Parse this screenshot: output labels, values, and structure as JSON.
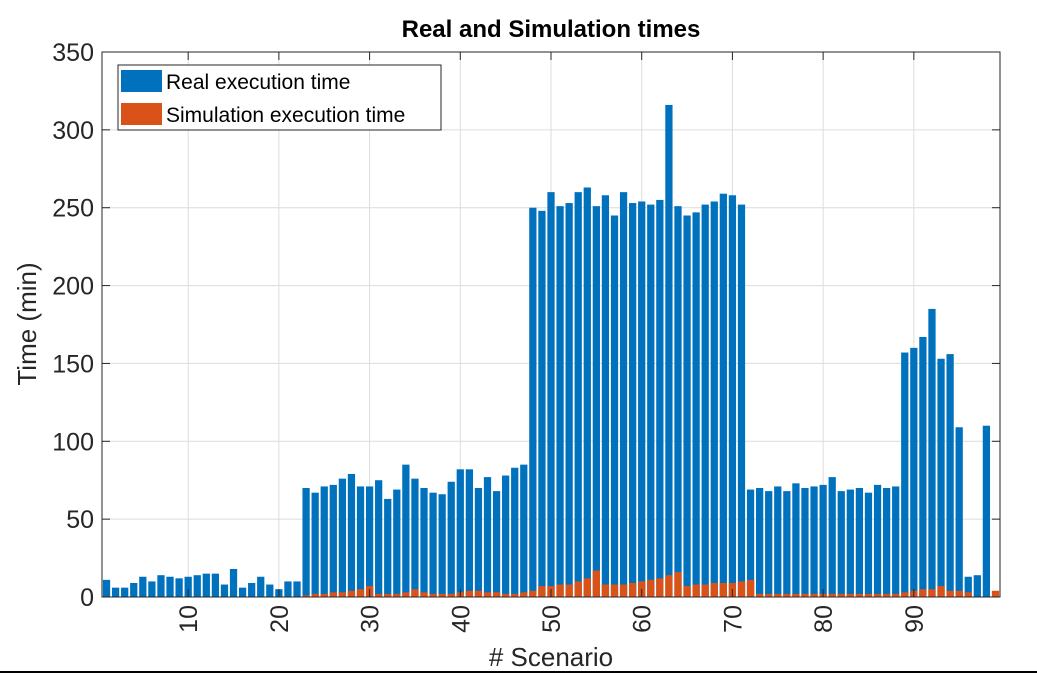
{
  "chart_data": {
    "type": "bar",
    "title": "Real and Simulation times",
    "xlabel": "# Scenario",
    "ylabel": "Time (min)",
    "xlim": [
      0.5,
      99.5
    ],
    "ylim": [
      0,
      350
    ],
    "xticks": [
      10,
      20,
      30,
      40,
      50,
      60,
      70,
      80,
      90
    ],
    "yticks": [
      0,
      50,
      100,
      150,
      200,
      250,
      300,
      350
    ],
    "grid": true,
    "legend_position": "top-left",
    "x": [
      1,
      2,
      3,
      4,
      5,
      6,
      7,
      8,
      9,
      10,
      11,
      12,
      13,
      14,
      15,
      16,
      17,
      18,
      19,
      20,
      21,
      22,
      23,
      24,
      25,
      26,
      27,
      28,
      29,
      30,
      31,
      32,
      33,
      34,
      35,
      36,
      37,
      38,
      39,
      40,
      41,
      42,
      43,
      44,
      45,
      46,
      47,
      48,
      49,
      50,
      51,
      52,
      53,
      54,
      55,
      56,
      57,
      58,
      59,
      60,
      61,
      62,
      63,
      64,
      65,
      66,
      67,
      68,
      69,
      70,
      71,
      72,
      73,
      74,
      75,
      76,
      77,
      78,
      79,
      80,
      81,
      82,
      83,
      84,
      85,
      86,
      87,
      88,
      89,
      90,
      91,
      92,
      93,
      94,
      95,
      96,
      97,
      98,
      99
    ],
    "series": [
      {
        "name": "Real execution time",
        "color": "#0072BD",
        "values": [
          11,
          6,
          6,
          9,
          13,
          10,
          14,
          13,
          12,
          13,
          14,
          15,
          15,
          8,
          18,
          6,
          9,
          13,
          8,
          5,
          10,
          10,
          70,
          67,
          71,
          72,
          76,
          79,
          71,
          71,
          75,
          63,
          69,
          85,
          76,
          70,
          67,
          66,
          74,
          82,
          82,
          70,
          77,
          68,
          78,
          83,
          85,
          250,
          248,
          260,
          251,
          253,
          260,
          263,
          251,
          258,
          245,
          260,
          253,
          254,
          252,
          255,
          316,
          251,
          245,
          247,
          252,
          254,
          259,
          258,
          252,
          69,
          70,
          68,
          71,
          68,
          73,
          70,
          71,
          72,
          77,
          68,
          69,
          70,
          67,
          72,
          70,
          71,
          157,
          160,
          167,
          185,
          153,
          156,
          109,
          13,
          14,
          110,
          0
        ]
      },
      {
        "name": "Simulation execution time",
        "color": "#D95319",
        "values": [
          0,
          0,
          0,
          0,
          0,
          0,
          0,
          0,
          0,
          0,
          0,
          0,
          0,
          0,
          0,
          0,
          0,
          0,
          0,
          0,
          0,
          0,
          1,
          2,
          2,
          3,
          3,
          4,
          5,
          7,
          2,
          2,
          2,
          3,
          5,
          3,
          2,
          2,
          2,
          3,
          4,
          4,
          3,
          3,
          2,
          2,
          3,
          4,
          7,
          7,
          8,
          8,
          10,
          12,
          17,
          8,
          8,
          8,
          9,
          10,
          11,
          12,
          14,
          16,
          7,
          8,
          8,
          9,
          9,
          9,
          10,
          11,
          2,
          2,
          2,
          2,
          2,
          2,
          2,
          2,
          2,
          2,
          2,
          2,
          2,
          2,
          2,
          2,
          3,
          4,
          5,
          5,
          7,
          4,
          4,
          3,
          0,
          0,
          4
        ]
      }
    ]
  }
}
